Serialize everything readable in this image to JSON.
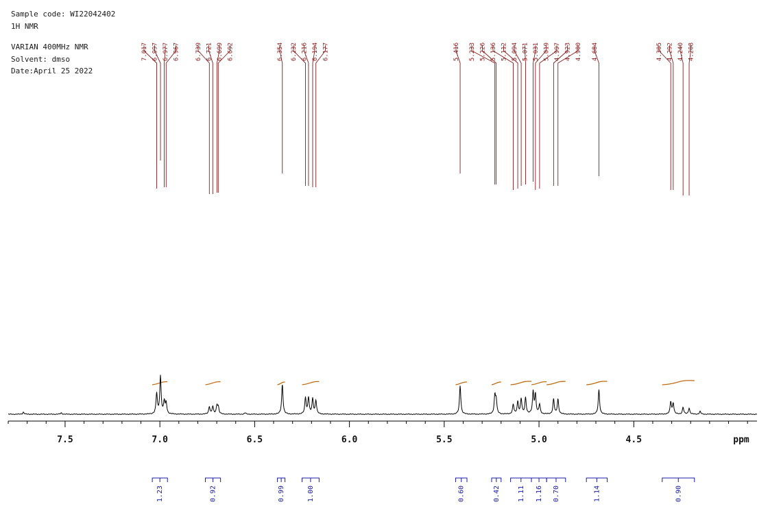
{
  "header": {
    "sample_code": "Sample code: WI22042402",
    "experiment": "1H NMR",
    "instrument": "VARIAN 400MHz NMR",
    "solvent": "Solvent:  dmso",
    "date": "Date:April 25 2022"
  },
  "chart_data": {
    "type": "line",
    "title": "",
    "xlabel": "ppm",
    "ylabel": "",
    "xlim": [
      7.8,
      3.85
    ],
    "xaxis_reversed": true,
    "major_ticks": [
      7.5,
      7.0,
      6.5,
      6.0,
      5.5,
      5.0,
      4.5
    ],
    "tick_labels": [
      "7.5",
      "7.0",
      "6.5",
      "6.0",
      "5.5",
      "5.0",
      "4.5"
    ],
    "minor_tick_step": 0.1,
    "colors": {
      "spectrum": "#000000",
      "peak_labels": "#8b1a1a",
      "integrals": "#1a1aa6",
      "integral_curve": "#c06a10"
    },
    "peak_labels": [
      "7.017",
      "6.997",
      "6.977",
      "6.967",
      "6.739",
      "6.721",
      "6.699",
      "6.692",
      "6.354",
      "6.232",
      "6.216",
      "6.194",
      "6.177",
      "5.416",
      "5.233",
      "5.226",
      "5.136",
      "5.112",
      "5.094",
      "5.071",
      "5.031",
      "5.019",
      "4.997",
      "4.923",
      "4.900",
      "4.684",
      "4.305",
      "4.292",
      "4.240",
      "4.208"
    ],
    "peaks": [
      {
        "ppm": 7.017,
        "h": 30
      },
      {
        "ppm": 6.997,
        "h": 55
      },
      {
        "ppm": 6.977,
        "h": 18
      },
      {
        "ppm": 6.967,
        "h": 16
      },
      {
        "ppm": 6.739,
        "h": 11
      },
      {
        "ppm": 6.721,
        "h": 11
      },
      {
        "ppm": 6.699,
        "h": 12
      },
      {
        "ppm": 6.692,
        "h": 10
      },
      {
        "ppm": 6.354,
        "h": 44
      },
      {
        "ppm": 6.232,
        "h": 24
      },
      {
        "ppm": 6.216,
        "h": 24
      },
      {
        "ppm": 6.194,
        "h": 22
      },
      {
        "ppm": 6.177,
        "h": 20
      },
      {
        "ppm": 5.416,
        "h": 42
      },
      {
        "ppm": 5.233,
        "h": 26
      },
      {
        "ppm": 5.226,
        "h": 20
      },
      {
        "ppm": 5.136,
        "h": 14
      },
      {
        "ppm": 5.112,
        "h": 18
      },
      {
        "ppm": 5.094,
        "h": 22
      },
      {
        "ppm": 5.071,
        "h": 24
      },
      {
        "ppm": 5.031,
        "h": 32
      },
      {
        "ppm": 5.019,
        "h": 28
      },
      {
        "ppm": 4.997,
        "h": 14
      },
      {
        "ppm": 4.923,
        "h": 22
      },
      {
        "ppm": 4.9,
        "h": 22
      },
      {
        "ppm": 4.684,
        "h": 36
      },
      {
        "ppm": 4.305,
        "h": 18
      },
      {
        "ppm": 4.292,
        "h": 16
      },
      {
        "ppm": 4.24,
        "h": 10
      },
      {
        "ppm": 4.208,
        "h": 9
      },
      {
        "ppm": 7.72,
        "h": 3
      },
      {
        "ppm": 7.52,
        "h": 2
      },
      {
        "ppm": 6.55,
        "h": 2
      },
      {
        "ppm": 4.15,
        "h": 4
      }
    ],
    "integrals": [
      {
        "from": 7.04,
        "to": 6.96,
        "value": "1.23"
      },
      {
        "from": 6.76,
        "to": 6.68,
        "value": "0.92"
      },
      {
        "from": 6.38,
        "to": 6.34,
        "value": "0.99"
      },
      {
        "from": 6.25,
        "to": 6.16,
        "value": "1.00"
      },
      {
        "from": 5.44,
        "to": 5.38,
        "value": "0.60"
      },
      {
        "from": 5.25,
        "to": 5.2,
        "value": "0.42"
      },
      {
        "from": 5.15,
        "to": 5.04,
        "value": "1.11"
      },
      {
        "from": 5.04,
        "to": 4.96,
        "value": "1.16"
      },
      {
        "from": 4.96,
        "to": 4.86,
        "value": "0.70"
      },
      {
        "from": 4.75,
        "to": 4.64,
        "value": "1.14"
      },
      {
        "from": 4.35,
        "to": 4.18,
        "value": "0.90"
      }
    ]
  }
}
